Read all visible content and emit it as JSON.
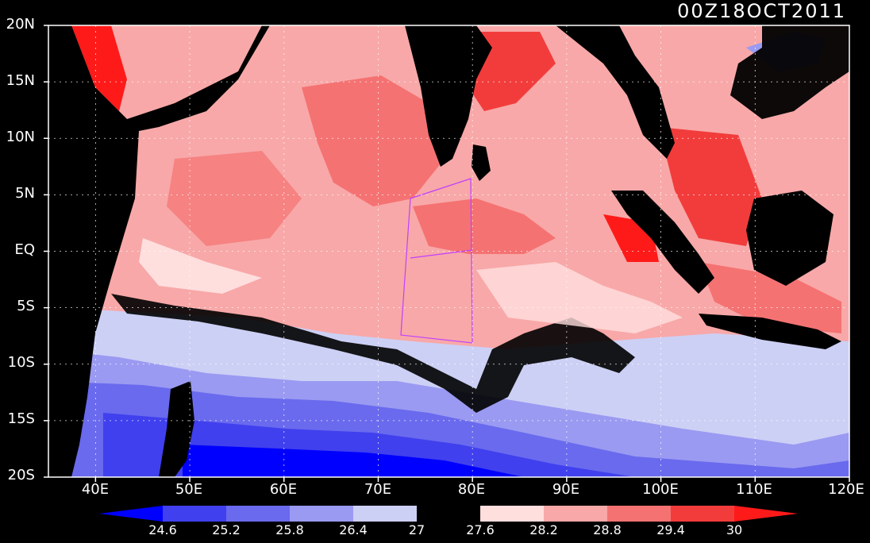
{
  "title": {
    "timestamp": "00Z18OCT2011"
  },
  "map": {
    "kind": "sea surface temperature map",
    "lon_range": [
      35,
      120
    ],
    "lat_range": [
      -20,
      20
    ],
    "lat_labels": [
      "20N",
      "15N",
      "10N",
      "5N",
      "EQ",
      "5S",
      "10S",
      "15S",
      "20S"
    ],
    "lon_labels": [
      "40E",
      "50E",
      "60E",
      "70E",
      "80E",
      "90E",
      "100E",
      "110E",
      "120E"
    ],
    "land_color": "#000000",
    "gridlines": "dotted"
  },
  "colorbar": {
    "labels": [
      "24.6",
      "25.2",
      "25.8",
      "26.4",
      "27",
      "27.6",
      "28.2",
      "28.8",
      "29.4",
      "30"
    ],
    "colors": [
      "#0000ff",
      "#4040ee",
      "#6a6aee",
      "#9a9af2",
      "#cdd0f5",
      "#000000",
      "#ffdede",
      "#f8a8a8",
      "#f57272",
      "#f23c3c",
      "#ff1a1a"
    ]
  }
}
